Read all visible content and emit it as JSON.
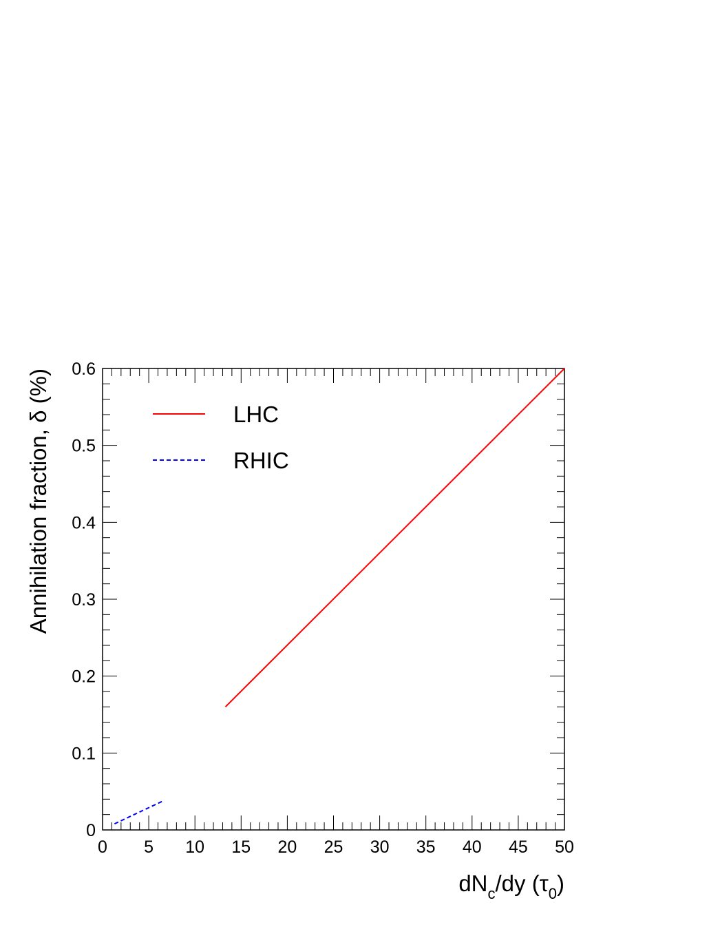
{
  "chart_data": {
    "type": "line",
    "title": "",
    "xlabel": {
      "text": "dN",
      "sub1": "c",
      "mid": "/dy (",
      "greek": "τ",
      "sub2": "0",
      "end": ")"
    },
    "ylabel": "Annihilation fraction, δ (%)",
    "xlim": [
      0,
      50
    ],
    "ylim": [
      0,
      0.6
    ],
    "x_major_ticks": [
      0,
      5,
      10,
      15,
      20,
      25,
      30,
      35,
      40,
      45,
      50
    ],
    "x_tick_labels": [
      "0",
      "5",
      "10",
      "15",
      "20",
      "25",
      "30",
      "35",
      "40",
      "45",
      "50"
    ],
    "y_major_ticks": [
      0,
      0.1,
      0.2,
      0.3,
      0.4,
      0.5,
      0.6
    ],
    "y_tick_labels": [
      "0",
      "0.1",
      "0.2",
      "0.3",
      "0.4",
      "0.5",
      "0.6"
    ],
    "grid": false,
    "legend_position": "top-left",
    "series": [
      {
        "name": "LHC",
        "color": "#ff0000",
        "style": "solid",
        "x": [
          13.3,
          50
        ],
        "y": [
          0.16,
          0.6
        ]
      },
      {
        "name": "RHIC",
        "color": "#0000ff",
        "style": "dashed",
        "x": [
          1.3,
          6.6
        ],
        "y": [
          0.008,
          0.038
        ]
      }
    ]
  }
}
